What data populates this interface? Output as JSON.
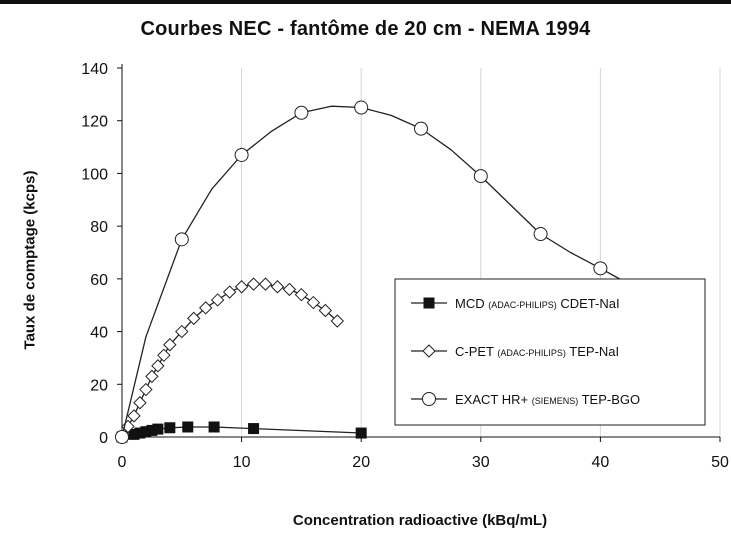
{
  "chart_data": {
    "type": "line",
    "title": "Courbes NEC - fantôme de 20 cm - NEMA 1994",
    "xlabel": "Concentration radioactive (kBq/mL)",
    "ylabel": "Taux de comptage (kcps)",
    "xlim": [
      0,
      50
    ],
    "ylim": [
      0,
      140
    ],
    "xticks": [
      "0",
      "10",
      "20",
      "30",
      "40",
      "50"
    ],
    "yticks": [
      "0",
      "20",
      "40",
      "60",
      "80",
      "100",
      "120",
      "140"
    ],
    "grid": "vertical",
    "legend_position": "lower-right",
    "series": [
      {
        "name": "MCD (ADAC-PHILIPS) CDET-NaI",
        "legend": {
          "pre": "MCD ",
          "small": "(ADAC-PHILIPS)",
          "post": " CDET-NaI"
        },
        "marker": "filled-square",
        "x": [
          0,
          1,
          1.5,
          2,
          2.5,
          3,
          4,
          5.5,
          7.7,
          11,
          20
        ],
        "y": [
          0,
          1,
          1.5,
          2,
          2.5,
          3,
          3.5,
          3.8,
          3.8,
          3.2,
          1.5
        ]
      },
      {
        "name": "C-PET (ADAC-PHILIPS) TEP-NaI",
        "legend": {
          "pre": "C-PET ",
          "small": "(ADAC-PHILIPS)",
          "post": " TEP-NaI"
        },
        "marker": "open-diamond",
        "x": [
          0,
          0.5,
          1,
          1.5,
          2,
          2.5,
          3,
          3.5,
          4,
          5,
          6,
          7,
          8,
          9,
          10,
          11,
          12,
          13,
          14,
          15,
          16,
          17,
          18
        ],
        "y": [
          0,
          4,
          8,
          13,
          18,
          23,
          27,
          31,
          35,
          40,
          45,
          49,
          52,
          55,
          57,
          58,
          58,
          57,
          56,
          54,
          51,
          48,
          44
        ]
      },
      {
        "name": "EXACT HR+ (SIEMENS) TEP-BGO",
        "legend": {
          "pre": "EXACT HR+ ",
          "small": "(SIEMENS)",
          "post": " TEP-BGO"
        },
        "marker": "open-circle",
        "x": [
          0,
          5,
          10,
          15,
          20,
          25,
          30,
          35,
          40
        ],
        "y": [
          0,
          75,
          107,
          123,
          125,
          117,
          99,
          77,
          64
        ],
        "curve_x": [
          0,
          2,
          5,
          7.5,
          10,
          12.5,
          15,
          17.5,
          20,
          22.5,
          25,
          27.5,
          30,
          32.5,
          35,
          37.5,
          40,
          42
        ],
        "curve_y": [
          0,
          38,
          75,
          94,
          107,
          116,
          123,
          125.5,
          125,
          122,
          117,
          109,
          99,
          88,
          77,
          70,
          64,
          59
        ]
      }
    ]
  }
}
